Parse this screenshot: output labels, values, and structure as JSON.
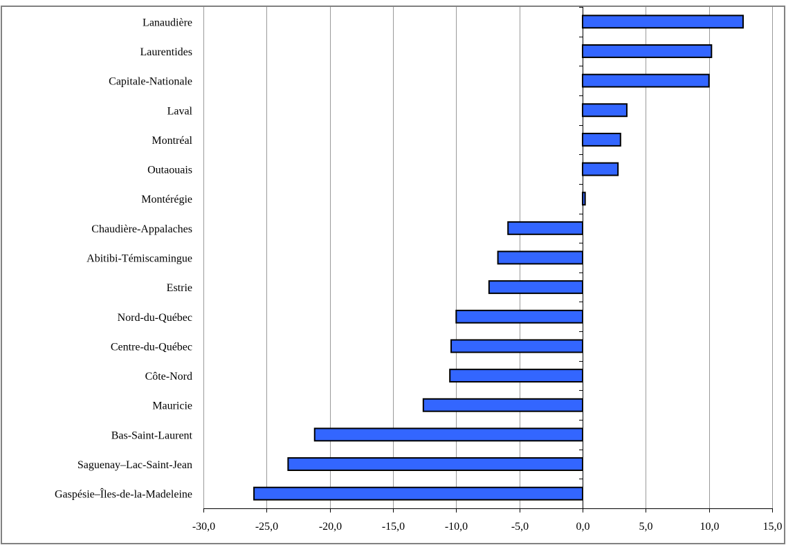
{
  "chart_data": {
    "type": "bar",
    "orientation": "horizontal",
    "categories": [
      "Lanaudière",
      "Laurentides",
      "Capitale-Nationale",
      "Laval",
      "Montréal",
      "Outaouais",
      "Montérégie",
      "Chaudière-Appalaches",
      "Abitibi-Témiscamingue",
      "Estrie",
      "Nord-du-Québec",
      "Centre-du-Québec",
      "Côte-Nord",
      "Mauricie",
      "Bas-Saint-Laurent",
      "Saguenay–Lac-Saint-Jean",
      "Gaspésie–Îles-de-la-Madeleine"
    ],
    "values": [
      12.7,
      10.2,
      10.0,
      3.5,
      3.0,
      2.8,
      0.2,
      -5.9,
      -6.7,
      -7.4,
      -10.0,
      -10.4,
      -10.5,
      -12.6,
      -21.2,
      -23.3,
      -26.0
    ],
    "xlim": [
      -30,
      15
    ],
    "x_ticks": [
      -30,
      -25,
      -20,
      -15,
      -10,
      -5,
      0,
      5,
      10,
      15
    ],
    "x_tick_labels": [
      "-30,0",
      "-25,0",
      "-20,0",
      "-15,0",
      "-10,0",
      "-5,0",
      "0,0",
      "5,0",
      "10,0",
      "15,0"
    ],
    "grid": "vertical",
    "title": "",
    "xlabel": "",
    "ylabel": "",
    "colors": {
      "bar_fill": "#3366ff",
      "bar_stroke": "#000000",
      "grid": "#999999",
      "frame": "#808080",
      "axis": "#000000"
    }
  }
}
